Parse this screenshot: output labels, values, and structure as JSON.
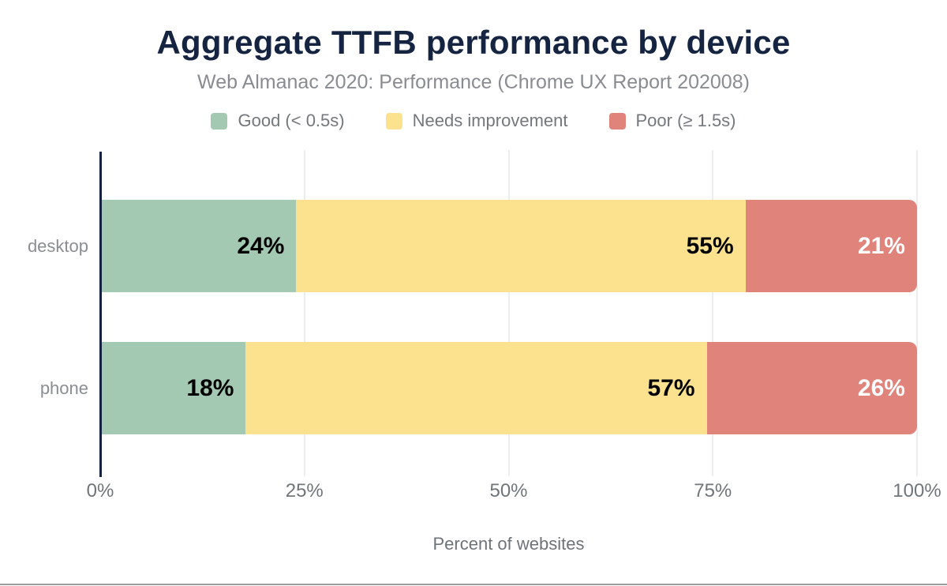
{
  "header": {
    "title": "Aggregate TTFB performance by device",
    "subtitle": "Web Almanac 2020: Performance (Chrome UX Report 202008)"
  },
  "chart_data": {
    "type": "bar",
    "orientation": "horizontal",
    "stacked": true,
    "title": "Aggregate TTFB performance by device",
    "subtitle": "Web Almanac 2020: Performance (Chrome UX Report 202008)",
    "categories": [
      "desktop",
      "phone"
    ],
    "series": [
      {
        "name": "Good (< 0.5s)",
        "color": "#a3c9b2",
        "label_color": "#000000",
        "values": [
          24,
          18
        ]
      },
      {
        "name": "Needs improvement",
        "color": "#fce18f",
        "label_color": "#000000",
        "values": [
          55,
          57
        ]
      },
      {
        "name": "Poor (≥ 1.5s)",
        "color": "#e0837b",
        "label_color": "#ffffff",
        "values": [
          21,
          26
        ]
      }
    ],
    "value_suffix": "%",
    "xlabel": "Percent of websites",
    "ylabel": "",
    "xlim": [
      0,
      100
    ],
    "x_ticks": [
      {
        "value": 0,
        "label": "0%"
      },
      {
        "value": 25,
        "label": "25%"
      },
      {
        "value": 50,
        "label": "50%"
      },
      {
        "value": 75,
        "label": "75%"
      },
      {
        "value": 100,
        "label": "100%"
      }
    ],
    "grid": true,
    "legend_position": "top",
    "colors": {
      "title": "#152441",
      "axis_line": "#152441",
      "gridline": "#ededed",
      "muted_text": "#74787c"
    }
  }
}
